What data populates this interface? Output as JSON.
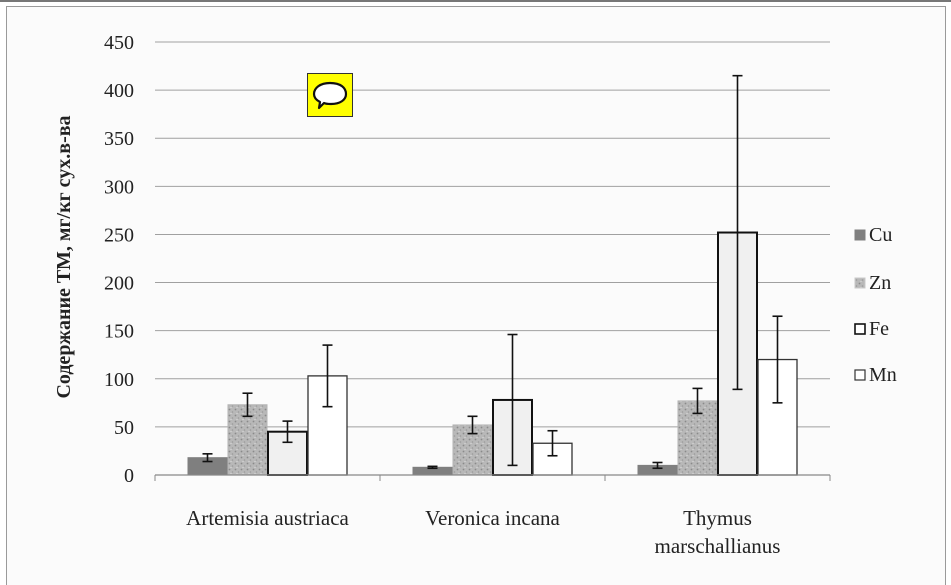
{
  "chart_data": {
    "type": "bar",
    "ylabel": "Содержание ТМ, мг/кг сух.в-ва",
    "ylim": [
      0,
      450
    ],
    "yticks": [
      0,
      50,
      100,
      150,
      200,
      250,
      300,
      350,
      400,
      450
    ],
    "categories": [
      [
        "Artemisia austriaca"
      ],
      [
        "Veronica incana"
      ],
      [
        "Thymus",
        "marschallianus"
      ]
    ],
    "grid": true,
    "legend_position": "right",
    "series": [
      {
        "name": "Cu",
        "values": [
          18,
          8,
          10
        ],
        "errors": [
          4,
          1,
          3
        ],
        "fill": "#7f7f7f",
        "stroke": "#7f7f7f",
        "pattern": "solid"
      },
      {
        "name": "Zn",
        "values": [
          73,
          52,
          77
        ],
        "errors": [
          12,
          9,
          13
        ],
        "fill": "#b3b3b3",
        "stroke": "#b3b3b3",
        "pattern": "speckle"
      },
      {
        "name": "Fe",
        "values": [
          45,
          78,
          252
        ],
        "errors": [
          11,
          68,
          163
        ],
        "fill": "#f0f0f0",
        "stroke": "#111111",
        "pattern": "outline"
      },
      {
        "name": "Mn",
        "values": [
          103,
          33,
          120
        ],
        "errors": [
          32,
          13,
          45
        ],
        "fill": "#ffffff",
        "stroke": "#333333",
        "pattern": "outline-thin"
      }
    ]
  },
  "comment_icon": "speech-bubble-icon",
  "colors": {
    "comment_bg": "#ffff00",
    "grid": "#a0a0a0"
  }
}
